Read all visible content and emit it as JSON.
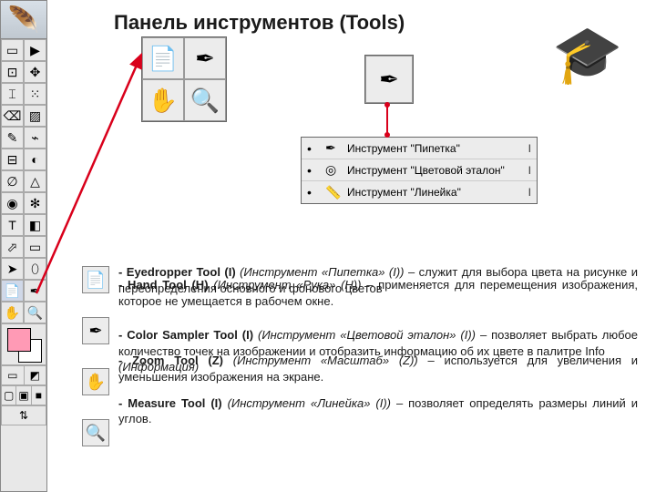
{
  "title": "Панель инструментов (Tools)",
  "toolbar": {
    "rows": [
      [
        "▭",
        "▶"
      ],
      [
        "⊡",
        "✥"
      ],
      [
        "⌶",
        "⁙"
      ],
      [
        "⌫",
        "▨"
      ],
      [
        "✎",
        "⌁"
      ],
      [
        "⊟",
        "◐"
      ],
      [
        "∅",
        "△"
      ],
      [
        "◉",
        "✻"
      ],
      [
        "T",
        "◧"
      ],
      [
        "⬀",
        "▭"
      ],
      [
        "➤",
        "⬯"
      ],
      [
        "📄",
        "✒"
      ],
      [
        "✋",
        "🔍"
      ]
    ],
    "selected": [
      11,
      0
    ]
  },
  "panel1": {
    "cells": [
      "📄",
      "✒",
      "✋",
      "🔍"
    ]
  },
  "panel2": {
    "cells": [
      "✒"
    ]
  },
  "context_menu": {
    "items": [
      {
        "icon": "✒",
        "label": "Инструмент \"Пипетка\"",
        "key": "I"
      },
      {
        "icon": "◎",
        "label": "Инструмент \"Цветовой эталон\"",
        "key": "I"
      },
      {
        "icon": "📏",
        "label": "Инструмент \"Линейка\"",
        "key": "I"
      }
    ]
  },
  "descriptions": {
    "d1a": "- Eyedropper Tool (I) ",
    "d1b": "(Инструмент «Пипетка» (I))",
    "d1c": " – служит для выбора цвета на рисунке и переопределения основного и фонового цветов",
    "d1x": "- Hand Tool (H) ",
    "d1y": "(Инструмент «Рука» (H))",
    "d1z": " – применяется для перемещения изображения, которое не умещается в рабочем окне.",
    "d2a": "- Color Sampler Tool (I) ",
    "d2b": "(Инструмент «Цветовой эталон» (I))",
    "d2c": " – позволяет выбрать любое количество точек на изображении и отобразить информацию об их цвете в палитре Info ",
    "d3a": "- Zoom Tool (Z) ",
    "d3b": "(Инструмент «Масштаб» (Z))",
    "d3c": " – используется для увеличения и уменьшения изображения на экране.",
    "d2x": "(Информация)",
    "d4a": "- Measure Tool (I) ",
    "d4b": "(Инструмент «Линейка» (I))",
    "d4c": " – позволяет определять размеры линий и углов."
  },
  "icon_col": [
    "📄",
    "✒",
    "✋",
    "🔍"
  ],
  "colors": {
    "arrow": "#d9001b"
  }
}
